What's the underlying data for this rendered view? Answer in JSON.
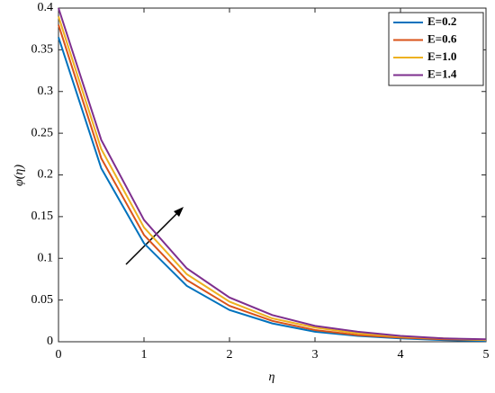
{
  "chart_data": {
    "type": "line",
    "x_label": "η",
    "y_label": "φ(η)",
    "x": [
      0,
      0.5,
      1,
      1.5,
      2,
      2.5,
      3,
      3.5,
      4,
      4.5,
      5
    ],
    "series": [
      {
        "name": "E=0.2",
        "color": "#0072BD",
        "values": [
          0.365,
          0.208,
          0.118,
          0.067,
          0.038,
          0.022,
          0.012,
          0.007,
          0.004,
          0.002,
          0.001
        ]
      },
      {
        "name": "E=0.6",
        "color": "#D95319",
        "values": [
          0.38,
          0.22,
          0.128,
          0.074,
          0.043,
          0.025,
          0.014,
          0.008,
          0.005,
          0.003,
          0.002
        ]
      },
      {
        "name": "E=1.0",
        "color": "#EDB120",
        "values": [
          0.39,
          0.231,
          0.137,
          0.081,
          0.048,
          0.028,
          0.017,
          0.01,
          0.006,
          0.004,
          0.002
        ]
      },
      {
        "name": "E=1.4",
        "color": "#7E2F8E",
        "values": [
          0.4,
          0.242,
          0.146,
          0.088,
          0.053,
          0.032,
          0.019,
          0.012,
          0.007,
          0.004,
          0.003
        ]
      }
    ],
    "xlim": [
      0,
      5
    ],
    "xticks": [
      0,
      1,
      2,
      3,
      4,
      5
    ],
    "ylim": [
      0,
      0.4
    ],
    "yticks": [
      0,
      0.05,
      0.1,
      0.15,
      0.2,
      0.25,
      0.3,
      0.35,
      0.4
    ],
    "grid": false,
    "legend": "upper right"
  }
}
